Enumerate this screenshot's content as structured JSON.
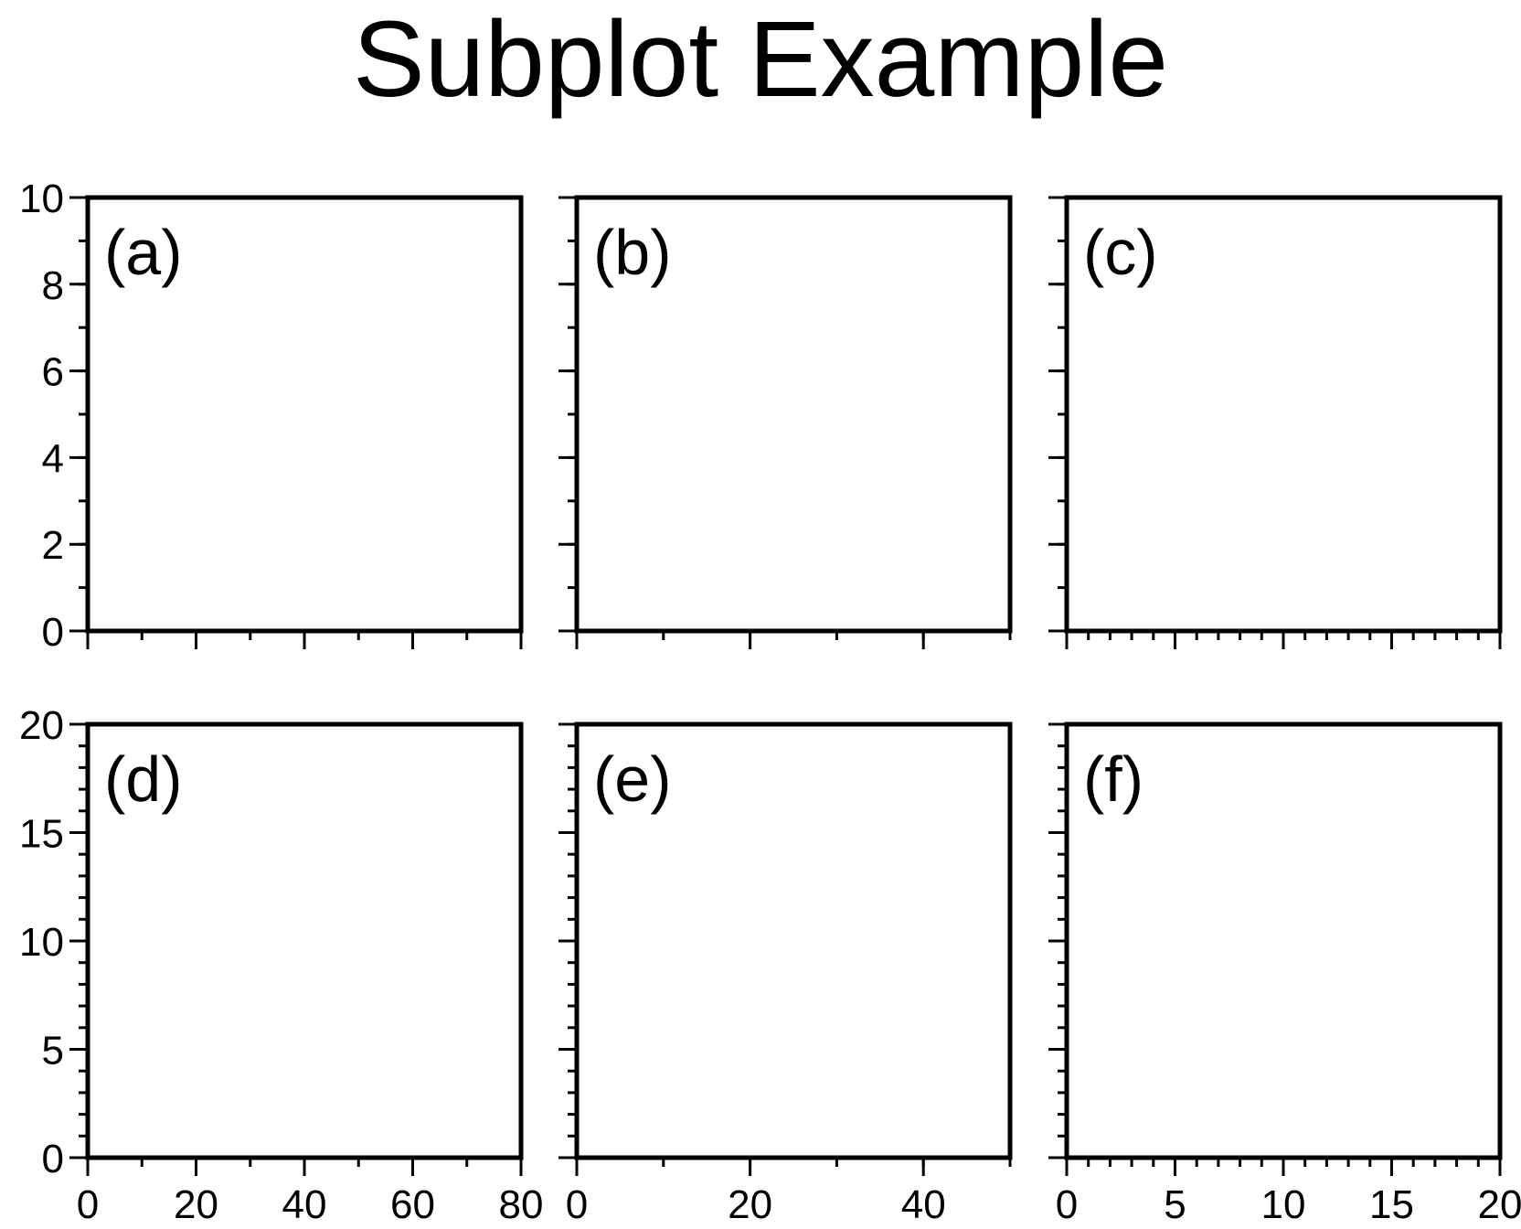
{
  "figure": {
    "title": "Subplot Example"
  },
  "chart_data": [
    {
      "type": "scatter",
      "panel_label": "(a)",
      "xlim": [
        0,
        80
      ],
      "ylim": [
        0,
        10
      ],
      "x_major_ticks": [
        0,
        20,
        40,
        60,
        80
      ],
      "x_minor_step": 10,
      "y_major_ticks": [
        0,
        2,
        4,
        6,
        8,
        10
      ],
      "y_minor_step": 1,
      "show_x_tick_labels": false,
      "show_y_tick_labels": true,
      "series": []
    },
    {
      "type": "scatter",
      "panel_label": "(b)",
      "xlim": [
        0,
        50
      ],
      "ylim": [
        0,
        10
      ],
      "x_major_ticks": [
        0,
        20,
        40
      ],
      "x_minor_step": 10,
      "y_major_ticks": [
        0,
        2,
        4,
        6,
        8,
        10
      ],
      "y_minor_step": 1,
      "show_x_tick_labels": false,
      "show_y_tick_labels": false,
      "series": []
    },
    {
      "type": "scatter",
      "panel_label": "(c)",
      "xlim": [
        0,
        20
      ],
      "ylim": [
        0,
        10
      ],
      "x_major_ticks": [
        0,
        5,
        10,
        15,
        20
      ],
      "x_minor_step": 1,
      "y_major_ticks": [
        0,
        2,
        4,
        6,
        8,
        10
      ],
      "y_minor_step": 1,
      "show_x_tick_labels": false,
      "show_y_tick_labels": false,
      "series": []
    },
    {
      "type": "scatter",
      "panel_label": "(d)",
      "xlim": [
        0,
        80
      ],
      "ylim": [
        0,
        20
      ],
      "x_major_ticks": [
        0,
        20,
        40,
        60,
        80
      ],
      "x_minor_step": 10,
      "y_major_ticks": [
        0,
        5,
        10,
        15,
        20
      ],
      "y_minor_step": 1,
      "show_x_tick_labels": true,
      "show_y_tick_labels": true,
      "series": []
    },
    {
      "type": "scatter",
      "panel_label": "(e)",
      "xlim": [
        0,
        50
      ],
      "ylim": [
        0,
        20
      ],
      "x_major_ticks": [
        0,
        20,
        40
      ],
      "x_minor_step": 10,
      "y_major_ticks": [
        0,
        5,
        10,
        15,
        20
      ],
      "y_minor_step": 1,
      "show_x_tick_labels": true,
      "show_y_tick_labels": false,
      "series": []
    },
    {
      "type": "scatter",
      "panel_label": "(f)",
      "xlim": [
        0,
        20
      ],
      "ylim": [
        0,
        20
      ],
      "x_major_ticks": [
        0,
        5,
        10,
        15,
        20
      ],
      "x_minor_step": 1,
      "y_major_ticks": [
        0,
        5,
        10,
        15,
        20
      ],
      "y_minor_step": 1,
      "show_x_tick_labels": true,
      "show_y_tick_labels": false,
      "series": []
    }
  ]
}
